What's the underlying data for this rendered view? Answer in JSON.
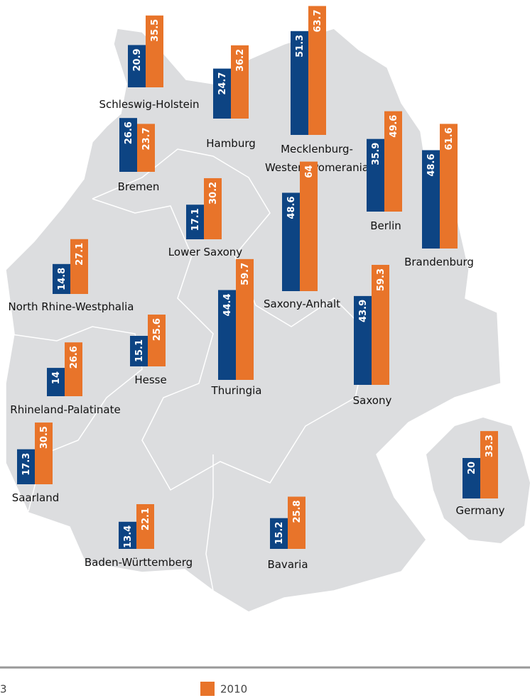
{
  "legend": [
    {
      "label": "3",
      "color": "#0d4483"
    },
    {
      "label": "2010",
      "color": "#e8742a"
    }
  ],
  "regions": [
    {
      "name": "Schleswig-Holstein",
      "values": [
        20.9,
        35.5
      ]
    },
    {
      "name": "Hamburg",
      "values": [
        24.7,
        36.2
      ]
    },
    {
      "name": [
        "Mecklenburg-",
        "Western Pomerania"
      ],
      "values": [
        51.3,
        63.7
      ]
    },
    {
      "name": "Bremen",
      "values": [
        26.6,
        23.7
      ]
    },
    {
      "name": "Berlin",
      "values": [
        35.9,
        49.6
      ]
    },
    {
      "name": "Brandenburg",
      "values": [
        48.6,
        61.6
      ]
    },
    {
      "name": "Lower Saxony",
      "values": [
        17.1,
        30.2
      ]
    },
    {
      "name": "Saxony-Anhalt",
      "values": [
        48.6,
        64.0
      ]
    },
    {
      "name": "North Rhine-Westphalia",
      "values": [
        14.8,
        27.1
      ]
    },
    {
      "name": "Thuringia",
      "values": [
        44.4,
        59.7
      ]
    },
    {
      "name": "Saxony",
      "values": [
        43.9,
        59.3
      ]
    },
    {
      "name": "Hesse",
      "values": [
        15.1,
        25.6
      ]
    },
    {
      "name": "Rhineland-Palatinate",
      "values": [
        14.0,
        26.6
      ]
    },
    {
      "name": "Saarland",
      "values": [
        17.3,
        30.5
      ]
    },
    {
      "name": "Baden-Württemberg",
      "values": [
        13.4,
        22.1
      ]
    },
    {
      "name": "Bavaria",
      "values": [
        15.2,
        25.8
      ]
    },
    {
      "name": "Germany",
      "values": [
        20.0,
        33.3
      ]
    }
  ]
}
